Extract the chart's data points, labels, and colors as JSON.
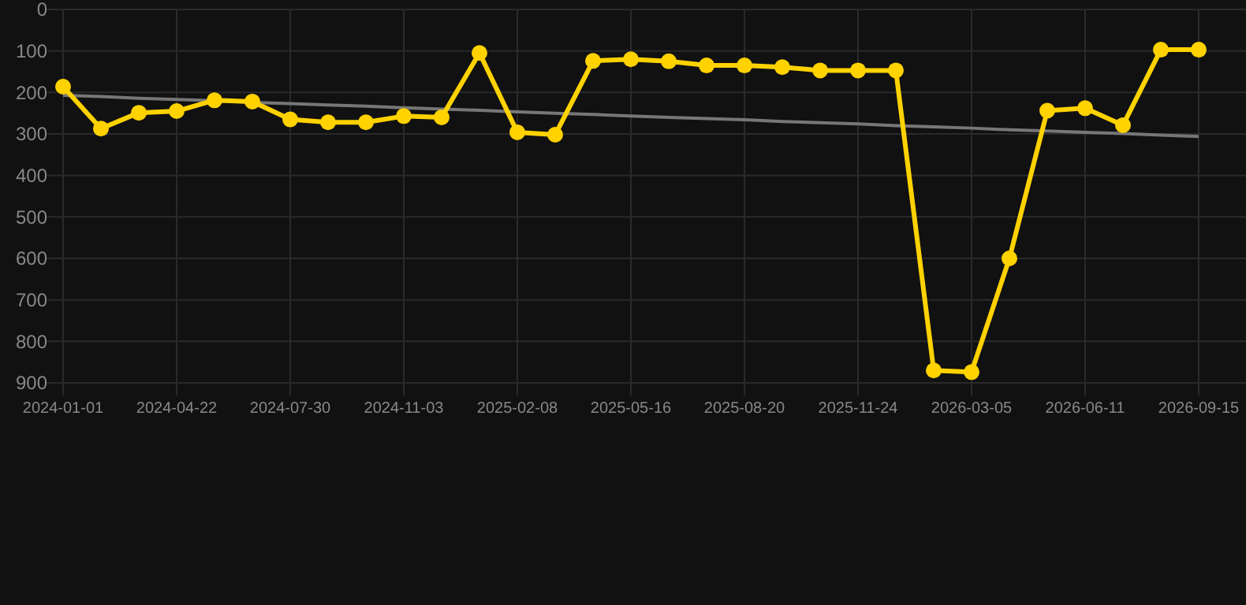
{
  "chart_data": {
    "type": "line",
    "categories": [
      "2024-01-01",
      null,
      null,
      "2024-04-22",
      null,
      null,
      "2024-07-30",
      null,
      null,
      "2024-11-03",
      null,
      null,
      "2025-02-08",
      null,
      null,
      "2025-05-16",
      null,
      null,
      "2025-08-20",
      null,
      null,
      "2025-11-24",
      null,
      null,
      "2026-03-05",
      null,
      null,
      "2026-06-11",
      null,
      null,
      "2026-09-15"
    ],
    "series": [
      {
        "color": "#ffd200",
        "marker": "circle",
        "values": [
          186,
          287,
          249,
          245,
          219,
          222,
          265,
          272,
          272,
          257,
          260,
          105,
          296,
          302,
          124,
          120,
          125,
          135,
          135,
          139,
          147,
          147,
          147,
          870,
          874,
          600,
          244,
          238,
          279,
          97,
          97
        ]
      },
      {
        "type": "line",
        "color": "#777777",
        "marker": "none",
        "values": [
          207,
          210,
          214,
          217,
          220,
          224,
          227,
          230,
          233,
          237,
          240,
          243,
          247,
          250,
          253,
          257,
          260,
          263,
          266,
          270,
          273,
          276,
          280,
          283,
          286,
          290,
          293,
          296,
          299,
          303,
          306
        ]
      }
    ],
    "ylim": [
      900,
      0
    ],
    "yticks": [
      0,
      100,
      200,
      300,
      400,
      500,
      600,
      700,
      800,
      900
    ],
    "grid": true
  }
}
